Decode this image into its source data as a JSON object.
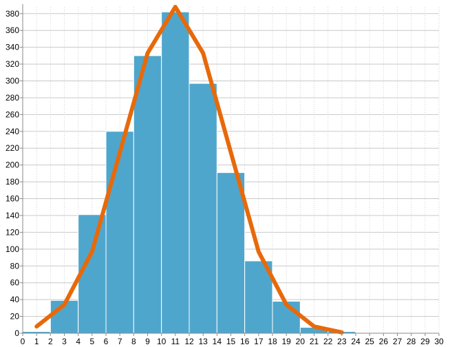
{
  "chart_data": {
    "type": "bar",
    "title": "",
    "xlabel": "",
    "ylabel": "",
    "x_ticks": [
      0,
      1,
      2,
      3,
      4,
      5,
      6,
      7,
      8,
      9,
      10,
      11,
      12,
      13,
      14,
      15,
      16,
      17,
      18,
      19,
      20,
      21,
      22,
      23,
      24,
      25,
      26,
      27,
      28,
      29,
      30
    ],
    "y_ticks": [
      0,
      20,
      40,
      60,
      80,
      100,
      120,
      140,
      160,
      180,
      200,
      220,
      240,
      260,
      280,
      300,
      320,
      340,
      360,
      380
    ],
    "xlim": [
      0,
      30
    ],
    "ylim": [
      0,
      388
    ],
    "grid": true,
    "bars": [
      {
        "x0": 0,
        "x1": 2,
        "value": 2
      },
      {
        "x0": 2,
        "x1": 4,
        "value": 39
      },
      {
        "x0": 4,
        "x1": 6,
        "value": 141
      },
      {
        "x0": 6,
        "x1": 8,
        "value": 240
      },
      {
        "x0": 8,
        "x1": 10,
        "value": 330
      },
      {
        "x0": 10,
        "x1": 12,
        "value": 382
      },
      {
        "x0": 12,
        "x1": 14,
        "value": 297
      },
      {
        "x0": 14,
        "x1": 16,
        "value": 191
      },
      {
        "x0": 16,
        "x1": 18,
        "value": 86
      },
      {
        "x0": 18,
        "x1": 20,
        "value": 38
      },
      {
        "x0": 20,
        "x1": 22,
        "value": 7
      },
      {
        "x0": 22,
        "x1": 24,
        "value": 2
      }
    ],
    "curve": {
      "x": [
        1,
        3,
        5,
        7,
        9,
        11,
        13,
        15,
        17,
        19,
        21,
        23
      ],
      "y": [
        8,
        34,
        97,
        215,
        333,
        388,
        333,
        215,
        97,
        34,
        8,
        1
      ]
    },
    "colors": {
      "bar": "#4fa6cc",
      "curve": "#e8690a",
      "grid": "#c8c8c8"
    }
  }
}
